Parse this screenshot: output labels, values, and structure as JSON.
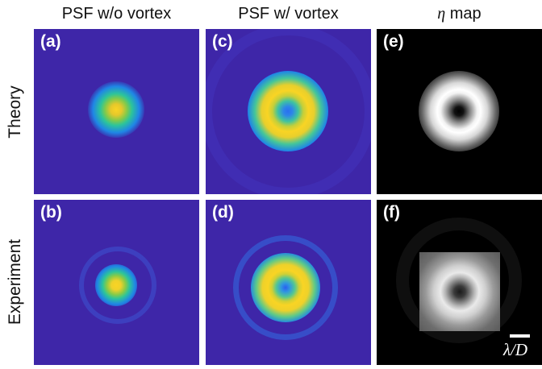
{
  "columns": {
    "c1": "PSF w/o vortex",
    "c2": "PSF w/ vortex",
    "c3_symbol": "η",
    "c3_rest": " map"
  },
  "rows": {
    "r1": "Theory",
    "r2": "Experiment"
  },
  "panels": {
    "a": "(a)",
    "b": "(b)",
    "c": "(c)",
    "d": "(d)",
    "e": "(e)",
    "f": "(f)"
  },
  "scale": {
    "label": "λ/D"
  },
  "colors": {
    "background_blue": "#3e26a8",
    "core_yellow": "#f9d424",
    "mid_green": "#2cc49b",
    "outer_blue": "#1f86e6",
    "eta_black": "#000000",
    "eta_white": "#ffffff"
  }
}
